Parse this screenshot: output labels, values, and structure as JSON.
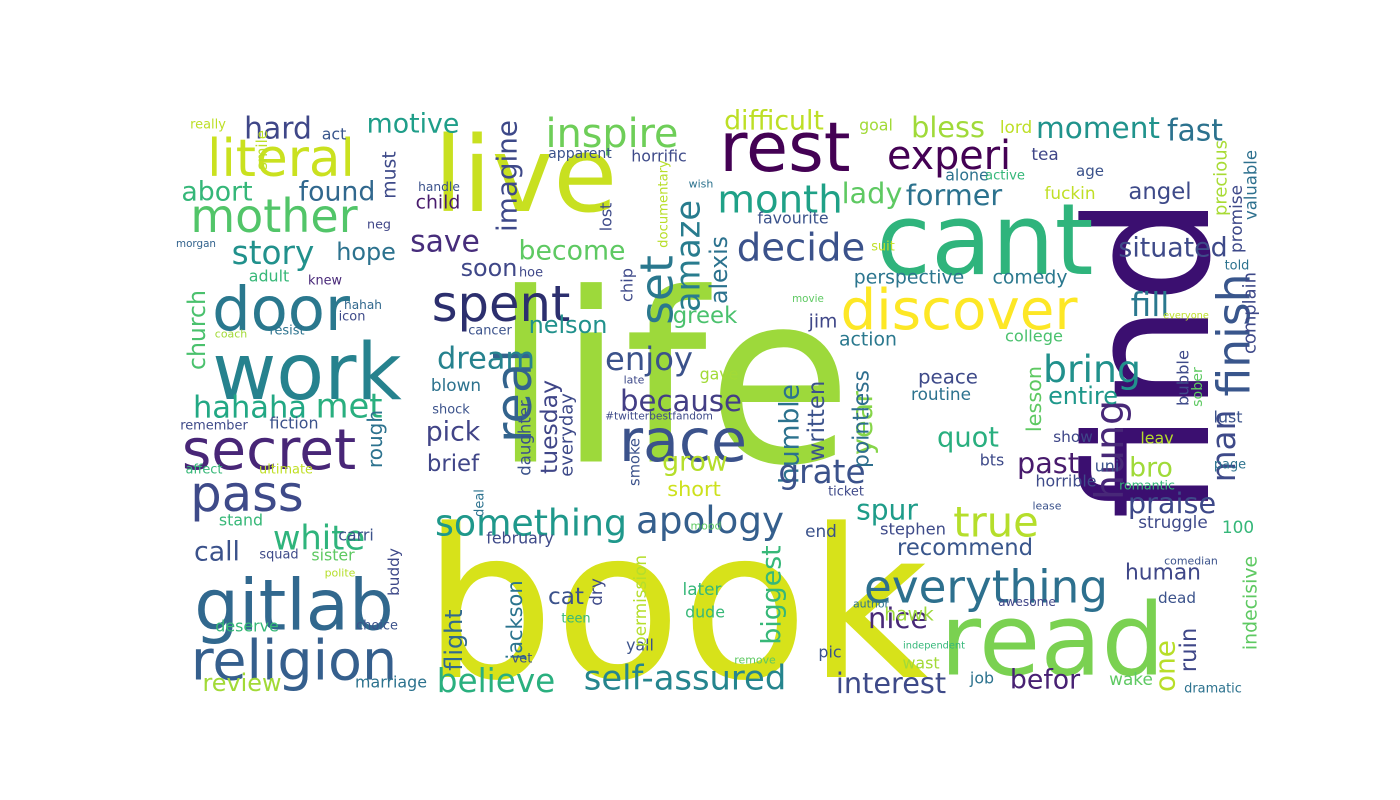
{
  "word_cloud": {
    "palette": "viridis",
    "words": [
      {
        "text": "life",
        "color": "#9dd93b"
      },
      {
        "text": "book",
        "color": "#d7e21a"
      },
      {
        "text": "find",
        "color": "#3b0f70"
      },
      {
        "text": "cant",
        "color": "#2fb47c"
      },
      {
        "text": "read",
        "color": "#7ad151"
      },
      {
        "text": "live",
        "color": "#c8e020"
      },
      {
        "text": "rest",
        "color": "#440154"
      },
      {
        "text": "work",
        "color": "#26828e"
      },
      {
        "text": "discover",
        "color": "#fde725"
      },
      {
        "text": "gitlab",
        "color": "#31688e"
      },
      {
        "text": "door",
        "color": "#2a788e"
      },
      {
        "text": "secret",
        "color": "#482677"
      },
      {
        "text": "religion",
        "color": "#355f8d"
      },
      {
        "text": "pass",
        "color": "#3e4a89"
      },
      {
        "text": "literal",
        "color": "#cae11f"
      },
      {
        "text": "mother",
        "color": "#52c569"
      },
      {
        "text": "spent",
        "color": "#2c2f6e"
      },
      {
        "text": "race",
        "color": "#3b528b"
      },
      {
        "text": "everything",
        "color": "#2d708e"
      },
      {
        "text": "real",
        "color": "#33638d"
      },
      {
        "text": "set",
        "color": "#2a788e"
      },
      {
        "text": "inspire",
        "color": "#6ece58"
      },
      {
        "text": "month",
        "color": "#1fa187"
      },
      {
        "text": "experi",
        "color": "#440154"
      },
      {
        "text": "decide",
        "color": "#3b528b"
      },
      {
        "text": "amaze",
        "color": "#287c8e"
      },
      {
        "text": "hahaha",
        "color": "#22a884"
      },
      {
        "text": "met",
        "color": "#29af7f"
      },
      {
        "text": "bring",
        "color": "#21918c"
      },
      {
        "text": "finish",
        "color": "#39568c"
      },
      {
        "text": "hung",
        "color": "#482878"
      },
      {
        "text": "apology",
        "color": "#355f8d"
      },
      {
        "text": "something",
        "color": "#1f988b"
      },
      {
        "text": "self-assured",
        "color": "#25858e"
      },
      {
        "text": "believe",
        "color": "#2ab07f"
      },
      {
        "text": "true",
        "color": "#b5de2b"
      },
      {
        "text": "white",
        "color": "#2fb47c"
      },
      {
        "text": "story",
        "color": "#21918c"
      },
      {
        "text": "save",
        "color": "#472d7b"
      },
      {
        "text": "dream",
        "color": "#26828e"
      },
      {
        "text": "enjoy",
        "color": "#3b528b"
      },
      {
        "text": "because",
        "color": "#433e85"
      },
      {
        "text": "moment",
        "color": "#20938c"
      },
      {
        "text": "bless",
        "color": "#a0da39"
      },
      {
        "text": "fast",
        "color": "#2c728e"
      },
      {
        "text": "hard",
        "color": "#3f4788"
      },
      {
        "text": "motive",
        "color": "#1f9e89"
      },
      {
        "text": "difficult",
        "color": "#bddf26"
      },
      {
        "text": "imagine",
        "color": "#3e4989"
      },
      {
        "text": "former",
        "color": "#2c728e"
      },
      {
        "text": "lady",
        "color": "#5ec962"
      },
      {
        "text": "found",
        "color": "#31688e"
      },
      {
        "text": "abort",
        "color": "#35b779"
      },
      {
        "text": "church",
        "color": "#4ac16d"
      },
      {
        "text": "hope",
        "color": "#2c728e"
      },
      {
        "text": "become",
        "color": "#5ec962"
      },
      {
        "text": "situated",
        "color": "#3e4a89"
      },
      {
        "text": "fill",
        "color": "#2a788e"
      },
      {
        "text": "soon",
        "color": "#3f4788"
      },
      {
        "text": "nelson",
        "color": "#21918c"
      },
      {
        "text": "greek",
        "color": "#4ac16d"
      },
      {
        "text": "alexis",
        "color": "#2c728e"
      },
      {
        "text": "tuesday",
        "color": "#404688"
      },
      {
        "text": "pick",
        "color": "#414487"
      },
      {
        "text": "grow",
        "color": "#b5de2b"
      },
      {
        "text": "quot",
        "color": "#29af7f"
      },
      {
        "text": "man",
        "color": "#3e4a89"
      },
      {
        "text": "entire",
        "color": "#1f988b"
      },
      {
        "text": "past",
        "color": "#481b6d"
      },
      {
        "text": "bro",
        "color": "#a0da39"
      },
      {
        "text": "praise",
        "color": "#3e4989"
      },
      {
        "text": "year",
        "color": "#86d549"
      },
      {
        "text": "humble",
        "color": "#2c728e"
      },
      {
        "text": "grate",
        "color": "#3b528b"
      },
      {
        "text": "spur",
        "color": "#1e9c89"
      },
      {
        "text": "recommend",
        "color": "#39568c"
      },
      {
        "text": "human",
        "color": "#3f4788"
      },
      {
        "text": "one",
        "color": "#b8de29"
      },
      {
        "text": "nice",
        "color": "#482878"
      },
      {
        "text": "interest",
        "color": "#3e4a89"
      },
      {
        "text": "befor",
        "color": "#482173"
      },
      {
        "text": "call",
        "color": "#3b528b"
      },
      {
        "text": "review",
        "color": "#a2da37"
      },
      {
        "text": "biggest",
        "color": "#37b878"
      },
      {
        "text": "jackson",
        "color": "#2b748e"
      },
      {
        "text": "flight",
        "color": "#30698e"
      },
      {
        "text": "cat",
        "color": "#3b528b"
      },
      {
        "text": "hawk",
        "color": "#9dd93b"
      },
      {
        "text": "pointless",
        "color": "#2e6e8e"
      },
      {
        "text": "written",
        "color": "#3b528b"
      },
      {
        "text": "ruin",
        "color": "#3f4788"
      },
      {
        "text": "brief",
        "color": "#404688"
      },
      {
        "text": "short",
        "color": "#cde11d"
      },
      {
        "text": "perspective",
        "color": "#2b758e"
      },
      {
        "text": "comedy",
        "color": "#2a788e"
      },
      {
        "text": "college",
        "color": "#4ac16d"
      },
      {
        "text": "lesson",
        "color": "#5ec962"
      },
      {
        "text": "peace",
        "color": "#3e4a89"
      },
      {
        "text": "routine",
        "color": "#2c728e"
      },
      {
        "text": "jim",
        "color": "#3f4788"
      },
      {
        "text": "action",
        "color": "#2a788e"
      },
      {
        "text": "angel",
        "color": "#3e4a89"
      },
      {
        "text": "precious",
        "color": "#a8db34"
      },
      {
        "text": "promise",
        "color": "#3e4989"
      },
      {
        "text": "valuable",
        "color": "#2d708e"
      },
      {
        "text": "fuckin",
        "color": "#c0df25"
      },
      {
        "text": "age",
        "color": "#3b528b"
      },
      {
        "text": "alone",
        "color": "#2c728e"
      },
      {
        "text": "active",
        "color": "#35b779"
      },
      {
        "text": "tea",
        "color": "#404688"
      },
      {
        "text": "lord",
        "color": "#bddf26"
      },
      {
        "text": "goal",
        "color": "#a2da37"
      },
      {
        "text": "horrific",
        "color": "#3e4a89"
      },
      {
        "text": "apparent",
        "color": "#3b528b"
      },
      {
        "text": "act",
        "color": "#39568c"
      },
      {
        "text": "really",
        "color": "#bddf26"
      },
      {
        "text": "smile",
        "color": "#bddf26"
      },
      {
        "text": "must",
        "color": "#3e4a89"
      },
      {
        "text": "handle",
        "color": "#3b528b"
      },
      {
        "text": "child",
        "color": "#481b6d"
      },
      {
        "text": "neg",
        "color": "#404688"
      },
      {
        "text": "morgan",
        "color": "#33638d"
      },
      {
        "text": "adult",
        "color": "#37b878"
      },
      {
        "text": "knew",
        "color": "#482878"
      },
      {
        "text": "hahah",
        "color": "#31688e"
      },
      {
        "text": "icon",
        "color": "#3e4a89"
      },
      {
        "text": "coach",
        "color": "#a2da37"
      },
      {
        "text": "resist",
        "color": "#2c728e"
      },
      {
        "text": "cancer",
        "color": "#3b528b"
      },
      {
        "text": "hoe",
        "color": "#3f4788"
      },
      {
        "text": "chip",
        "color": "#3e4989"
      },
      {
        "text": "lost",
        "color": "#3e4a89"
      },
      {
        "text": "documentary",
        "color": "#b8de29"
      },
      {
        "text": "wish",
        "color": "#2c728e"
      },
      {
        "text": "favourite",
        "color": "#3b528b"
      },
      {
        "text": "suit",
        "color": "#c0df25"
      },
      {
        "text": "movie",
        "color": "#5ec962"
      },
      {
        "text": "told",
        "color": "#2c728e"
      },
      {
        "text": "complain",
        "color": "#3e4989"
      },
      {
        "text": "everyone",
        "color": "#bddf26"
      },
      {
        "text": "bubble",
        "color": "#3e4a89"
      },
      {
        "text": "sober",
        "color": "#5ec962"
      },
      {
        "text": "lust",
        "color": "#3b528b"
      },
      {
        "text": "show",
        "color": "#3f4788"
      },
      {
        "text": "leav",
        "color": "#b5de2b"
      },
      {
        "text": "page",
        "color": "#2c728e"
      },
      {
        "text": "horrible",
        "color": "#3e4a89"
      },
      {
        "text": "romantic",
        "color": "#37b878"
      },
      {
        "text": "uni",
        "color": "#3b528b"
      },
      {
        "text": "bts",
        "color": "#3e4a89"
      },
      {
        "text": "lease",
        "color": "#3b528b"
      },
      {
        "text": "struggle",
        "color": "#3e4989"
      },
      {
        "text": "100",
        "color": "#35b779"
      },
      {
        "text": "comedian",
        "color": "#3b528b"
      },
      {
        "text": "indecisive",
        "color": "#5ec962"
      },
      {
        "text": "dead",
        "color": "#3b528b"
      },
      {
        "text": "dramatic",
        "color": "#2c728e"
      },
      {
        "text": "wake",
        "color": "#5ec962"
      },
      {
        "text": "job",
        "color": "#2c728e"
      },
      {
        "text": "wast",
        "color": "#a2da37"
      },
      {
        "text": "independent",
        "color": "#35b779"
      },
      {
        "text": "author",
        "color": "#2c728e"
      },
      {
        "text": "awesome",
        "color": "#404688"
      },
      {
        "text": "pic",
        "color": "#3b528b"
      },
      {
        "text": "remove",
        "color": "#5ec962"
      },
      {
        "text": "stephen",
        "color": "#3e4a89"
      },
      {
        "text": "end",
        "color": "#3b528b"
      },
      {
        "text": "ticket",
        "color": "#3e4989"
      },
      {
        "text": "later",
        "color": "#35b779"
      },
      {
        "text": "dude",
        "color": "#37b878"
      },
      {
        "text": "yall",
        "color": "#3b528b"
      },
      {
        "text": "permission",
        "color": "#b5de2b"
      },
      {
        "text": "mood",
        "color": "#5ec962"
      },
      {
        "text": "february",
        "color": "#3e4a89"
      },
      {
        "text": "deal",
        "color": "#2c728e"
      },
      {
        "text": "smoke",
        "color": "#3b528b"
      },
      {
        "text": "everyday",
        "color": "#3e4a89"
      },
      {
        "text": "daughter",
        "color": "#3b528b"
      },
      {
        "text": "#twitterbestfandom",
        "color": "#3e4a89"
      },
      {
        "text": "gave",
        "color": "#a2da37"
      },
      {
        "text": "late",
        "color": "#3e4989"
      },
      {
        "text": "blown",
        "color": "#2c728e"
      },
      {
        "text": "shock",
        "color": "#3b528b"
      },
      {
        "text": "teen",
        "color": "#37b878"
      },
      {
        "text": "dry",
        "color": "#3e4a89"
      },
      {
        "text": "vet",
        "color": "#3b528b"
      },
      {
        "text": "buddy",
        "color": "#3e4989"
      },
      {
        "text": "marriage",
        "color": "#2c728e"
      },
      {
        "text": "choice",
        "color": "#3b528b"
      },
      {
        "text": "deserve",
        "color": "#37b878"
      },
      {
        "text": "polite",
        "color": "#b5de2b"
      },
      {
        "text": "squad",
        "color": "#3e4a89"
      },
      {
        "text": "sister",
        "color": "#5ec962"
      },
      {
        "text": "carri",
        "color": "#3b528b"
      },
      {
        "text": "stand",
        "color": "#37b878"
      },
      {
        "text": "rough",
        "color": "#2c728e"
      },
      {
        "text": "ultimate",
        "color": "#c0df25"
      },
      {
        "text": "affect",
        "color": "#37b878"
      },
      {
        "text": "fiction",
        "color": "#3b528b"
      },
      {
        "text": "remember",
        "color": "#3e4a89"
      }
    ]
  }
}
